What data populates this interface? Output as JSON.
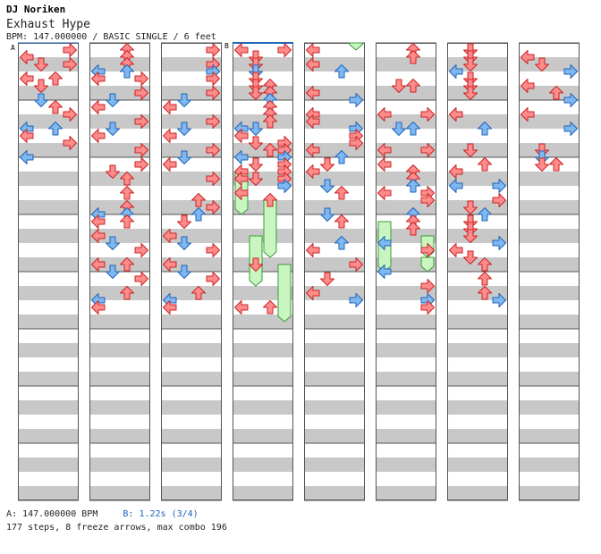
{
  "header": {
    "artist": "DJ Noriken",
    "title": "Exhaust Hype",
    "info": "BPM: 147.000000 / BASIC SINGLE / 6 feet"
  },
  "footer": {
    "bpm_text": "A: 147.000000 BPM",
    "stop_text": "B: 1.22s (3/4)",
    "stats": "177 steps, 8 freeze arrows, max combo 196"
  },
  "markers": {
    "a": "A",
    "b": "B"
  },
  "colors": {
    "stripe": "#c8c8c8",
    "red": "#ff8c8c",
    "red_stroke": "#cc2222",
    "blue": "#7fb8f0",
    "blue_stroke": "#1f63b8",
    "freeze": "#c8f5c0",
    "freeze_stroke": "#3b9a3b"
  },
  "arrows": [
    [
      0,
      3,
      -2
    ],
    [
      0,
      3,
      0
    ],
    [
      0,
      0,
      1
    ],
    [
      0,
      3,
      2
    ],
    [
      0,
      1,
      2
    ],
    [
      0,
      0,
      4
    ],
    [
      0,
      2,
      4
    ],
    [
      0,
      1,
      5
    ],
    [
      0,
      1,
      7
    ],
    [
      0,
      2,
      8
    ],
    [
      0,
      3,
      9
    ],
    [
      0,
      0,
      11
    ],
    [
      0,
      2,
      11
    ],
    [
      0,
      0,
      12
    ],
    [
      0,
      3,
      13
    ],
    [
      0,
      0,
      15
    ],
    [
      1,
      2,
      0
    ],
    [
      1,
      2,
      1
    ],
    [
      1,
      2,
      2
    ],
    [
      1,
      0,
      3
    ],
    [
      1,
      2,
      3
    ],
    [
      1,
      0,
      4
    ],
    [
      1,
      3,
      4
    ],
    [
      1,
      3,
      6
    ],
    [
      1,
      1,
      7
    ],
    [
      1,
      0,
      8
    ],
    [
      1,
      3,
      10
    ],
    [
      1,
      1,
      11
    ],
    [
      1,
      0,
      12
    ],
    [
      1,
      3,
      14
    ],
    [
      1,
      3,
      16
    ],
    [
      1,
      1,
      17
    ],
    [
      1,
      2,
      18
    ],
    [
      1,
      2,
      20
    ],
    [
      1,
      2,
      22
    ],
    [
      1,
      0,
      23
    ],
    [
      1,
      2,
      23
    ],
    [
      1,
      0,
      24
    ],
    [
      1,
      2,
      24
    ],
    [
      1,
      0,
      26
    ],
    [
      1,
      1,
      27
    ],
    [
      1,
      3,
      28
    ],
    [
      1,
      0,
      30
    ],
    [
      1,
      2,
      30
    ],
    [
      1,
      1,
      31
    ],
    [
      1,
      3,
      32
    ],
    [
      1,
      2,
      34
    ],
    [
      1,
      0,
      35
    ],
    [
      1,
      0,
      36
    ],
    [
      2,
      3,
      0
    ],
    [
      2,
      3,
      2
    ],
    [
      2,
      3,
      3
    ],
    [
      2,
      3,
      4
    ],
    [
      2,
      3,
      6
    ],
    [
      2,
      1,
      7
    ],
    [
      2,
      0,
      8
    ],
    [
      2,
      3,
      10
    ],
    [
      2,
      1,
      11
    ],
    [
      2,
      0,
      12
    ],
    [
      2,
      3,
      14
    ],
    [
      2,
      1,
      15
    ],
    [
      2,
      0,
      16
    ],
    [
      2,
      3,
      18
    ],
    [
      2,
      2,
      21
    ],
    [
      2,
      3,
      22
    ],
    [
      2,
      2,
      23
    ],
    [
      2,
      1,
      24
    ],
    [
      2,
      0,
      26
    ],
    [
      2,
      1,
      27
    ],
    [
      2,
      3,
      28
    ],
    [
      2,
      0,
      30
    ],
    [
      2,
      1,
      31
    ],
    [
      2,
      3,
      32
    ],
    [
      2,
      2,
      34
    ],
    [
      2,
      0,
      35
    ],
    [
      2,
      0,
      36
    ],
    [
      3,
      0,
      0
    ],
    [
      3,
      3,
      0
    ],
    [
      3,
      1,
      1
    ],
    [
      3,
      1,
      2
    ],
    [
      3,
      1,
      3
    ],
    [
      3,
      1,
      4
    ],
    [
      3,
      1,
      5
    ],
    [
      3,
      2,
      5
    ],
    [
      3,
      1,
      6
    ],
    [
      3,
      2,
      6
    ],
    [
      3,
      2,
      7
    ],
    [
      3,
      2,
      8
    ],
    [
      3,
      2,
      9
    ],
    [
      3,
      2,
      10
    ],
    [
      3,
      0,
      11
    ],
    [
      3,
      1,
      11
    ],
    [
      3,
      0,
      12
    ],
    [
      3,
      1,
      13
    ],
    [
      3,
      3,
      13
    ],
    [
      3,
      2,
      14
    ],
    [
      3,
      3,
      14
    ],
    [
      3,
      0,
      15
    ],
    [
      3,
      3,
      15
    ],
    [
      3,
      1,
      16
    ],
    [
      3,
      3,
      16
    ],
    [
      3,
      0,
      17
    ],
    [
      3,
      3,
      17
    ],
    [
      3,
      0,
      18
    ],
    [
      3,
      1,
      18
    ],
    [
      3,
      3,
      18
    ],
    [
      3,
      3,
      19
    ],
    [
      3,
      0,
      20
    ],
    [
      3,
      2,
      21
    ],
    [
      3,
      1,
      30
    ],
    [
      3,
      2,
      36
    ],
    [
      3,
      0,
      36
    ],
    [
      4,
      0,
      0
    ],
    [
      4,
      0,
      2
    ],
    [
      4,
      2,
      3
    ],
    [
      4,
      0,
      6
    ],
    [
      4,
      3,
      7
    ],
    [
      4,
      0,
      9
    ],
    [
      4,
      0,
      10
    ],
    [
      4,
      3,
      11
    ],
    [
      4,
      3,
      12
    ],
    [
      4,
      3,
      13
    ],
    [
      4,
      0,
      14
    ],
    [
      4,
      2,
      15
    ],
    [
      4,
      1,
      16
    ],
    [
      4,
      0,
      17
    ],
    [
      4,
      1,
      19
    ],
    [
      4,
      2,
      20
    ],
    [
      4,
      1,
      23
    ],
    [
      4,
      2,
      24
    ],
    [
      4,
      2,
      27
    ],
    [
      4,
      0,
      28
    ],
    [
      4,
      3,
      30
    ],
    [
      4,
      1,
      32
    ],
    [
      4,
      0,
      34
    ],
    [
      4,
      3,
      35
    ],
    [
      5,
      2,
      0
    ],
    [
      5,
      2,
      1
    ],
    [
      5,
      1,
      5
    ],
    [
      5,
      2,
      5
    ],
    [
      5,
      0,
      9
    ],
    [
      5,
      3,
      9
    ],
    [
      5,
      1,
      11
    ],
    [
      5,
      2,
      11
    ],
    [
      5,
      0,
      14
    ],
    [
      5,
      3,
      14
    ],
    [
      5,
      0,
      16
    ],
    [
      5,
      2,
      17
    ],
    [
      5,
      2,
      18
    ],
    [
      5,
      2,
      19
    ],
    [
      5,
      0,
      20
    ],
    [
      5,
      3,
      20
    ],
    [
      5,
      3,
      21
    ],
    [
      5,
      2,
      23
    ],
    [
      5,
      2,
      24
    ],
    [
      5,
      2,
      25
    ],
    [
      5,
      0,
      27
    ],
    [
      5,
      3,
      28
    ],
    [
      5,
      0,
      31
    ],
    [
      5,
      3,
      33
    ],
    [
      5,
      3,
      35
    ],
    [
      5,
      3,
      36
    ],
    [
      6,
      1,
      0
    ],
    [
      6,
      1,
      1
    ],
    [
      6,
      1,
      2
    ],
    [
      6,
      0,
      3
    ],
    [
      6,
      1,
      4
    ],
    [
      6,
      1,
      5
    ],
    [
      6,
      1,
      6
    ],
    [
      6,
      0,
      9
    ],
    [
      6,
      2,
      11
    ],
    [
      6,
      1,
      14
    ],
    [
      6,
      2,
      16
    ],
    [
      6,
      0,
      17
    ],
    [
      6,
      0,
      19
    ],
    [
      6,
      3,
      19
    ],
    [
      6,
      3,
      21
    ],
    [
      6,
      1,
      22
    ],
    [
      6,
      2,
      23
    ],
    [
      6,
      1,
      24
    ],
    [
      6,
      1,
      25
    ],
    [
      6,
      1,
      26
    ],
    [
      6,
      3,
      27
    ],
    [
      6,
      0,
      28
    ],
    [
      6,
      1,
      29
    ],
    [
      6,
      2,
      30
    ],
    [
      6,
      2,
      32
    ],
    [
      6,
      2,
      34
    ],
    [
      6,
      3,
      35
    ],
    [
      7,
      0,
      1
    ],
    [
      7,
      1,
      2
    ],
    [
      7,
      3,
      3
    ],
    [
      7,
      0,
      5
    ],
    [
      7,
      2,
      6
    ],
    [
      7,
      3,
      7
    ],
    [
      7,
      0,
      9
    ],
    [
      7,
      3,
      11
    ],
    [
      7,
      1,
      14
    ],
    [
      7,
      1,
      15
    ],
    [
      7,
      1,
      16
    ],
    [
      7,
      2,
      16
    ]
  ],
  "freezes": [
    [
      3,
      0,
      17,
      22
    ],
    [
      3,
      2,
      21,
      28
    ],
    [
      3,
      1,
      26,
      32
    ],
    [
      3,
      3,
      30,
      37
    ],
    [
      4,
      3,
      -2,
      -1
    ],
    [
      5,
      0,
      24,
      27
    ],
    [
      5,
      0,
      27,
      30
    ],
    [
      5,
      3,
      26,
      28
    ],
    [
      5,
      3,
      29,
      30
    ]
  ]
}
